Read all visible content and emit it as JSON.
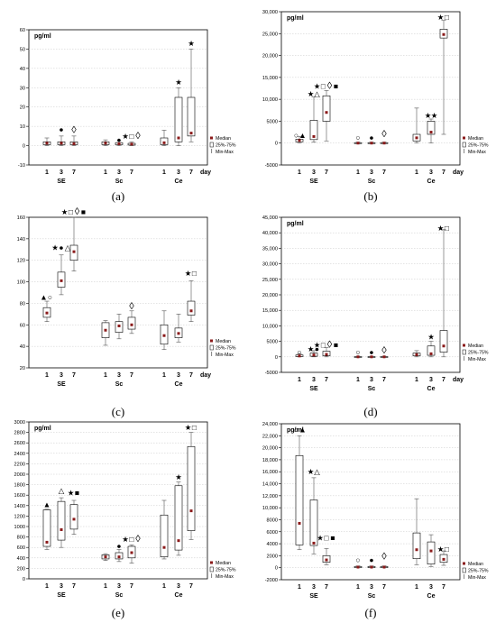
{
  "colors": {
    "median": "#8b1a1a",
    "box": "#000000",
    "grid": "#c8c8c8",
    "whisker": "#555555"
  },
  "legend": {
    "median": "Median",
    "box": "25%-75%",
    "whisker": "Min-Max"
  },
  "chart_data": [
    {
      "caption": "(a)",
      "type": "box",
      "unit_label": "pg/ml",
      "day_label": "day",
      "yticks": [
        "-10",
        "0",
        "10",
        "20",
        "30",
        "40",
        "50",
        "60"
      ],
      "ylim": [
        -10,
        60
      ],
      "groups": [
        "SE",
        "Sc",
        "Ce"
      ],
      "days": [
        "1",
        "3",
        "7"
      ],
      "boxes": [
        {
          "g": "SE",
          "d": "1",
          "min": 0,
          "q1": 0.5,
          "median": 1.3,
          "q3": 2,
          "max": 4
        },
        {
          "g": "SE",
          "d": "3",
          "min": 0,
          "q1": 0.5,
          "median": 1.3,
          "q3": 2,
          "max": 5
        },
        {
          "g": "SE",
          "d": "7",
          "min": 0,
          "q1": 0.5,
          "median": 1,
          "q3": 2,
          "max": 5
        },
        {
          "g": "Sc",
          "d": "1",
          "min": 0,
          "q1": 0.5,
          "median": 1.3,
          "q3": 2,
          "max": 3
        },
        {
          "g": "Sc",
          "d": "3",
          "min": 0,
          "q1": 0.5,
          "median": 1,
          "q3": 1.5,
          "max": 2.5
        },
        {
          "g": "Sc",
          "d": "7",
          "min": 0,
          "q1": 0.3,
          "median": 0.8,
          "q3": 1.2,
          "max": 2
        },
        {
          "g": "Ce",
          "d": "1",
          "min": 0,
          "q1": 0.5,
          "median": 1.5,
          "q3": 4,
          "max": 8
        },
        {
          "g": "Ce",
          "d": "3",
          "min": 0,
          "q1": 2,
          "median": 4,
          "q3": 25,
          "max": 30
        },
        {
          "g": "Ce",
          "d": "7",
          "min": 2,
          "q1": 5,
          "median": 6.5,
          "q3": 25,
          "max": 50
        }
      ],
      "markers": [
        {
          "g": "SE",
          "d": "3",
          "symbols": [
            "●"
          ],
          "at": 8.5
        },
        {
          "g": "SE",
          "d": "7",
          "symbols": [
            "◊"
          ],
          "at": 8
        },
        {
          "g": "Sc",
          "d": "3",
          "symbols": [
            "●"
          ],
          "at": 3
        },
        {
          "g": "Sc",
          "d": "7",
          "symbols": [
            "★",
            "□",
            "◊"
          ],
          "at": 5
        },
        {
          "g": "Ce",
          "d": "3",
          "symbols": [
            "★"
          ],
          "at": 33
        },
        {
          "g": "Ce",
          "d": "7",
          "symbols": [
            "★"
          ],
          "at": 53
        }
      ]
    },
    {
      "caption": "(b)",
      "type": "box",
      "unit_label": "pg/ml",
      "day_label": "day",
      "yticks": [
        "-5000",
        "0",
        "5000",
        "10,000",
        "15,000",
        "20,000",
        "25,000",
        "30,000"
      ],
      "ylim": [
        -5000,
        30000
      ],
      "groups": [
        "SE",
        "Sc",
        "Ce"
      ],
      "days": [
        "1",
        "3",
        "7"
      ],
      "boxes": [
        {
          "g": "SE",
          "d": "1",
          "min": 0,
          "q1": 300,
          "median": 600,
          "q3": 900,
          "max": 1500
        },
        {
          "g": "SE",
          "d": "3",
          "min": 200,
          "q1": 800,
          "median": 1500,
          "q3": 5200,
          "max": 10500
        },
        {
          "g": "SE",
          "d": "7",
          "min": 500,
          "q1": 5000,
          "median": 7000,
          "q3": 10800,
          "max": 12000
        },
        {
          "g": "Sc",
          "d": "1",
          "min": 0,
          "q1": 0,
          "median": 0,
          "q3": 100,
          "max": 200
        },
        {
          "g": "Sc",
          "d": "3",
          "min": 0,
          "q1": 0,
          "median": 0,
          "q3": 100,
          "max": 200
        },
        {
          "g": "Sc",
          "d": "7",
          "min": 0,
          "q1": 0,
          "median": 0,
          "q3": 100,
          "max": 200
        },
        {
          "g": "Ce",
          "d": "1",
          "min": 0,
          "q1": 500,
          "median": 1200,
          "q3": 2000,
          "max": 8000
        },
        {
          "g": "Ce",
          "d": "3",
          "min": 0,
          "q1": 2000,
          "median": 2500,
          "q3": 5000,
          "max": 5500
        },
        {
          "g": "Ce",
          "d": "7",
          "min": 2000,
          "q1": 24000,
          "median": 24800,
          "q3": 26000,
          "max": 28000
        }
      ],
      "markers": [
        {
          "g": "SE",
          "d": "1",
          "symbols": [
            "○",
            "▲"
          ],
          "at": 1800
        },
        {
          "g": "SE",
          "d": "3",
          "symbols": [
            "★",
            "△"
          ],
          "at": 11300
        },
        {
          "g": "SE",
          "d": "7",
          "symbols": [
            "★",
            "□",
            "◊",
            "■"
          ],
          "at": 13000
        },
        {
          "g": "Sc",
          "d": "1",
          "symbols": [
            "○"
          ],
          "at": 1300
        },
        {
          "g": "Sc",
          "d": "3",
          "symbols": [
            "●"
          ],
          "at": 1300
        },
        {
          "g": "Sc",
          "d": "7",
          "symbols": [
            "◊"
          ],
          "at": 2000
        },
        {
          "g": "Ce",
          "d": "3",
          "symbols": [
            "★",
            "★"
          ],
          "at": 6300
        },
        {
          "g": "Ce",
          "d": "7",
          "symbols": [
            "★",
            "□"
          ],
          "at": 28800
        }
      ]
    },
    {
      "caption": "(c)",
      "type": "box",
      "unit_label": "",
      "day_label": "day",
      "yticks": [
        "20",
        "40",
        "60",
        "80",
        "100",
        "120",
        "140",
        "160"
      ],
      "ylim": [
        20,
        160
      ],
      "groups": [
        "SE",
        "Sc",
        "Ce"
      ],
      "days": [
        "1",
        "3",
        "7"
      ],
      "boxes": [
        {
          "g": "SE",
          "d": "1",
          "min": 63,
          "q1": 67,
          "median": 71,
          "q3": 76,
          "max": 82
        },
        {
          "g": "SE",
          "d": "3",
          "min": 88,
          "q1": 95,
          "median": 101,
          "q3": 109,
          "max": 125
        },
        {
          "g": "SE",
          "d": "7",
          "min": 110,
          "q1": 120,
          "median": 128,
          "q3": 134,
          "max": 160
        },
        {
          "g": "Sc",
          "d": "1",
          "min": 41,
          "q1": 48,
          "median": 55,
          "q3": 62,
          "max": 64
        },
        {
          "g": "Sc",
          "d": "3",
          "min": 47,
          "q1": 53,
          "median": 59,
          "q3": 63,
          "max": 70
        },
        {
          "g": "Sc",
          "d": "7",
          "min": 52,
          "q1": 56,
          "median": 60,
          "q3": 67,
          "max": 73
        },
        {
          "g": "Ce",
          "d": "1",
          "min": 37,
          "q1": 42,
          "median": 50,
          "q3": 60,
          "max": 73
        },
        {
          "g": "Ce",
          "d": "3",
          "min": 44,
          "q1": 48,
          "median": 52,
          "q3": 57,
          "max": 70
        },
        {
          "g": "Ce",
          "d": "7",
          "min": 63,
          "q1": 69,
          "median": 73,
          "q3": 82,
          "max": 101
        }
      ],
      "markers": [
        {
          "g": "SE",
          "d": "1",
          "symbols": [
            "▲",
            "○"
          ],
          "at": 86
        },
        {
          "g": "SE",
          "d": "3",
          "symbols": [
            "★",
            "●",
            "△"
          ],
          "at": 132
        },
        {
          "g": "SE",
          "d": "7",
          "symbols": [
            "★",
            "□",
            "◊",
            "■"
          ],
          "at": 165
        },
        {
          "g": "Sc",
          "d": "7",
          "symbols": [
            "◊"
          ],
          "at": 77
        },
        {
          "g": "Ce",
          "d": "7",
          "symbols": [
            "★",
            "□"
          ],
          "at": 108
        }
      ]
    },
    {
      "caption": "(d)",
      "type": "box",
      "unit_label": "pg/ml",
      "day_label": "day",
      "yticks": [
        "-5000",
        "0",
        "5000",
        "10,000",
        "15,000",
        "20,000",
        "25,000",
        "30,000",
        "35,000",
        "40,000",
        "45,000"
      ],
      "ylim": [
        -5000,
        45000
      ],
      "groups": [
        "SE",
        "Sc",
        "Ce"
      ],
      "days": [
        "1",
        "3",
        "7"
      ],
      "boxes": [
        {
          "g": "SE",
          "d": "1",
          "min": 0,
          "q1": 100,
          "median": 300,
          "q3": 600,
          "max": 1000
        },
        {
          "g": "SE",
          "d": "3",
          "min": 0,
          "q1": 200,
          "median": 600,
          "q3": 1200,
          "max": 2000
        },
        {
          "g": "SE",
          "d": "7",
          "min": 0,
          "q1": 300,
          "median": 800,
          "q3": 1800,
          "max": 3000
        },
        {
          "g": "Sc",
          "d": "1",
          "min": 0,
          "q1": 0,
          "median": 0,
          "q3": 100,
          "max": 200
        },
        {
          "g": "Sc",
          "d": "3",
          "min": 0,
          "q1": 0,
          "median": 0,
          "q3": 100,
          "max": 200
        },
        {
          "g": "Sc",
          "d": "7",
          "min": 0,
          "q1": 0,
          "median": 0,
          "q3": 100,
          "max": 200
        },
        {
          "g": "Ce",
          "d": "1",
          "min": 0,
          "q1": 300,
          "median": 700,
          "q3": 1200,
          "max": 2000
        },
        {
          "g": "Ce",
          "d": "3",
          "min": 0,
          "q1": 500,
          "median": 1000,
          "q3": 3500,
          "max": 5000
        },
        {
          "g": "Ce",
          "d": "7",
          "min": 0,
          "q1": 1500,
          "median": 3500,
          "q3": 8500,
          "max": 41000
        }
      ],
      "markers": [
        {
          "g": "SE",
          "d": "1",
          "symbols": [
            "○"
          ],
          "at": 1500
        },
        {
          "g": "SE",
          "d": "3",
          "symbols": [
            "★",
            "●"
          ],
          "at": 2500
        },
        {
          "g": "SE",
          "d": "7",
          "symbols": [
            "★",
            "□",
            "◊",
            "■"
          ],
          "at": 3800
        },
        {
          "g": "Sc",
          "d": "1",
          "symbols": [
            "○"
          ],
          "at": 1500
        },
        {
          "g": "Sc",
          "d": "3",
          "symbols": [
            "●"
          ],
          "at": 1500
        },
        {
          "g": "Sc",
          "d": "7",
          "symbols": [
            "◊"
          ],
          "at": 2000
        },
        {
          "g": "Ce",
          "d": "3",
          "symbols": [
            "★"
          ],
          "at": 6500
        },
        {
          "g": "Ce",
          "d": "7",
          "symbols": [
            "★",
            "□"
          ],
          "at": 41500
        }
      ]
    },
    {
      "caption": "(e)",
      "type": "box",
      "unit_label": "pg/ml",
      "day_label": "",
      "yticks": [
        "0",
        "200",
        "400",
        "600",
        "800",
        "1000",
        "1200",
        "1400",
        "1600",
        "1800",
        "2000",
        "2200",
        "2400",
        "2600",
        "2800",
        "3000"
      ],
      "ylim": [
        0,
        3000
      ],
      "groups": [
        "SE",
        "Sc",
        "Ce"
      ],
      "days": [
        "1",
        "3",
        "7"
      ],
      "boxes": [
        {
          "g": "SE",
          "d": "1",
          "min": 560,
          "q1": 620,
          "median": 700,
          "q3": 1320,
          "max": 1330
        },
        {
          "g": "SE",
          "d": "3",
          "min": 600,
          "q1": 740,
          "median": 940,
          "q3": 1480,
          "max": 1550
        },
        {
          "g": "SE",
          "d": "7",
          "min": 850,
          "q1": 950,
          "median": 1140,
          "q3": 1420,
          "max": 1500
        },
        {
          "g": "Sc",
          "d": "1",
          "min": 350,
          "q1": 380,
          "median": 420,
          "q3": 460,
          "max": 480
        },
        {
          "g": "Sc",
          "d": "3",
          "min": 330,
          "q1": 380,
          "median": 420,
          "q3": 500,
          "max": 560
        },
        {
          "g": "Sc",
          "d": "7",
          "min": 300,
          "q1": 400,
          "median": 500,
          "q3": 620,
          "max": 650
        },
        {
          "g": "Ce",
          "d": "1",
          "min": 380,
          "q1": 420,
          "median": 600,
          "q3": 1220,
          "max": 1500
        },
        {
          "g": "Ce",
          "d": "3",
          "min": 450,
          "q1": 550,
          "median": 730,
          "q3": 1780,
          "max": 1850
        },
        {
          "g": "Ce",
          "d": "7",
          "min": 750,
          "q1": 920,
          "median": 1300,
          "q3": 2530,
          "max": 2800
        }
      ],
      "markers": [
        {
          "g": "SE",
          "d": "1",
          "symbols": [
            "▲"
          ],
          "at": 1420
        },
        {
          "g": "SE",
          "d": "3",
          "symbols": [
            "△"
          ],
          "at": 1690
        },
        {
          "g": "SE",
          "d": "7",
          "symbols": [
            "★",
            "■"
          ],
          "at": 1650
        },
        {
          "g": "Sc",
          "d": "3",
          "symbols": [
            "●"
          ],
          "at": 630
        },
        {
          "g": "Sc",
          "d": "7",
          "symbols": [
            "★",
            "□",
            "◊"
          ],
          "at": 760
        },
        {
          "g": "Ce",
          "d": "3",
          "symbols": [
            "★"
          ],
          "at": 1950
        },
        {
          "g": "Ce",
          "d": "7",
          "symbols": [
            "★",
            "□"
          ],
          "at": 2900
        }
      ]
    },
    {
      "caption": "(f)",
      "type": "box",
      "unit_label": "pg/ml",
      "day_label": "",
      "yticks": [
        "-2000",
        "0",
        "2000",
        "4000",
        "6000",
        "8000",
        "10,000",
        "12,000",
        "14,000",
        "16,000",
        "18,000",
        "20,000",
        "22,000",
        "24,000"
      ],
      "ylim": [
        -2000,
        24000
      ],
      "groups": [
        "SE",
        "Sc",
        "Ce"
      ],
      "days": [
        "1",
        "3",
        "7"
      ],
      "boxes": [
        {
          "g": "SE",
          "d": "1",
          "min": 3000,
          "q1": 3800,
          "median": 7400,
          "q3": 18700,
          "max": 22000
        },
        {
          "g": "SE",
          "d": "3",
          "min": 2300,
          "q1": 3700,
          "median": 4100,
          "q3": 11300,
          "max": 15000
        },
        {
          "g": "SE",
          "d": "7",
          "min": 500,
          "q1": 900,
          "median": 1300,
          "q3": 2000,
          "max": 3200
        },
        {
          "g": "Sc",
          "d": "1",
          "min": 0,
          "q1": 0,
          "median": 100,
          "q3": 200,
          "max": 300
        },
        {
          "g": "Sc",
          "d": "3",
          "min": 0,
          "q1": 0,
          "median": 100,
          "q3": 200,
          "max": 300
        },
        {
          "g": "Sc",
          "d": "7",
          "min": 0,
          "q1": 0,
          "median": 100,
          "q3": 200,
          "max": 300
        },
        {
          "g": "Ce",
          "d": "1",
          "min": 500,
          "q1": 1500,
          "median": 3000,
          "q3": 5800,
          "max": 11500
        },
        {
          "g": "Ce",
          "d": "3",
          "min": 200,
          "q1": 600,
          "median": 2800,
          "q3": 4300,
          "max": 5500
        },
        {
          "g": "Ce",
          "d": "7",
          "min": 400,
          "q1": 900,
          "median": 1400,
          "q3": 2200,
          "max": 2800
        }
      ],
      "markers": [
        {
          "g": "SE",
          "d": "1",
          "symbols": [
            "○",
            "▲"
          ],
          "at": 23000
        },
        {
          "g": "SE",
          "d": "3",
          "symbols": [
            "★",
            "△"
          ],
          "at": 16000
        },
        {
          "g": "SE",
          "d": "7",
          "symbols": [
            "★",
            "□",
            "■"
          ],
          "at": 5000
        },
        {
          "g": "Sc",
          "d": "1",
          "symbols": [
            "○"
          ],
          "at": 1300
        },
        {
          "g": "Sc",
          "d": "3",
          "symbols": [
            "●"
          ],
          "at": 1300
        },
        {
          "g": "Sc",
          "d": "7",
          "symbols": [
            "◊"
          ],
          "at": 1800
        },
        {
          "g": "Ce",
          "d": "7",
          "symbols": [
            "★",
            "□"
          ],
          "at": 3100
        }
      ]
    }
  ]
}
